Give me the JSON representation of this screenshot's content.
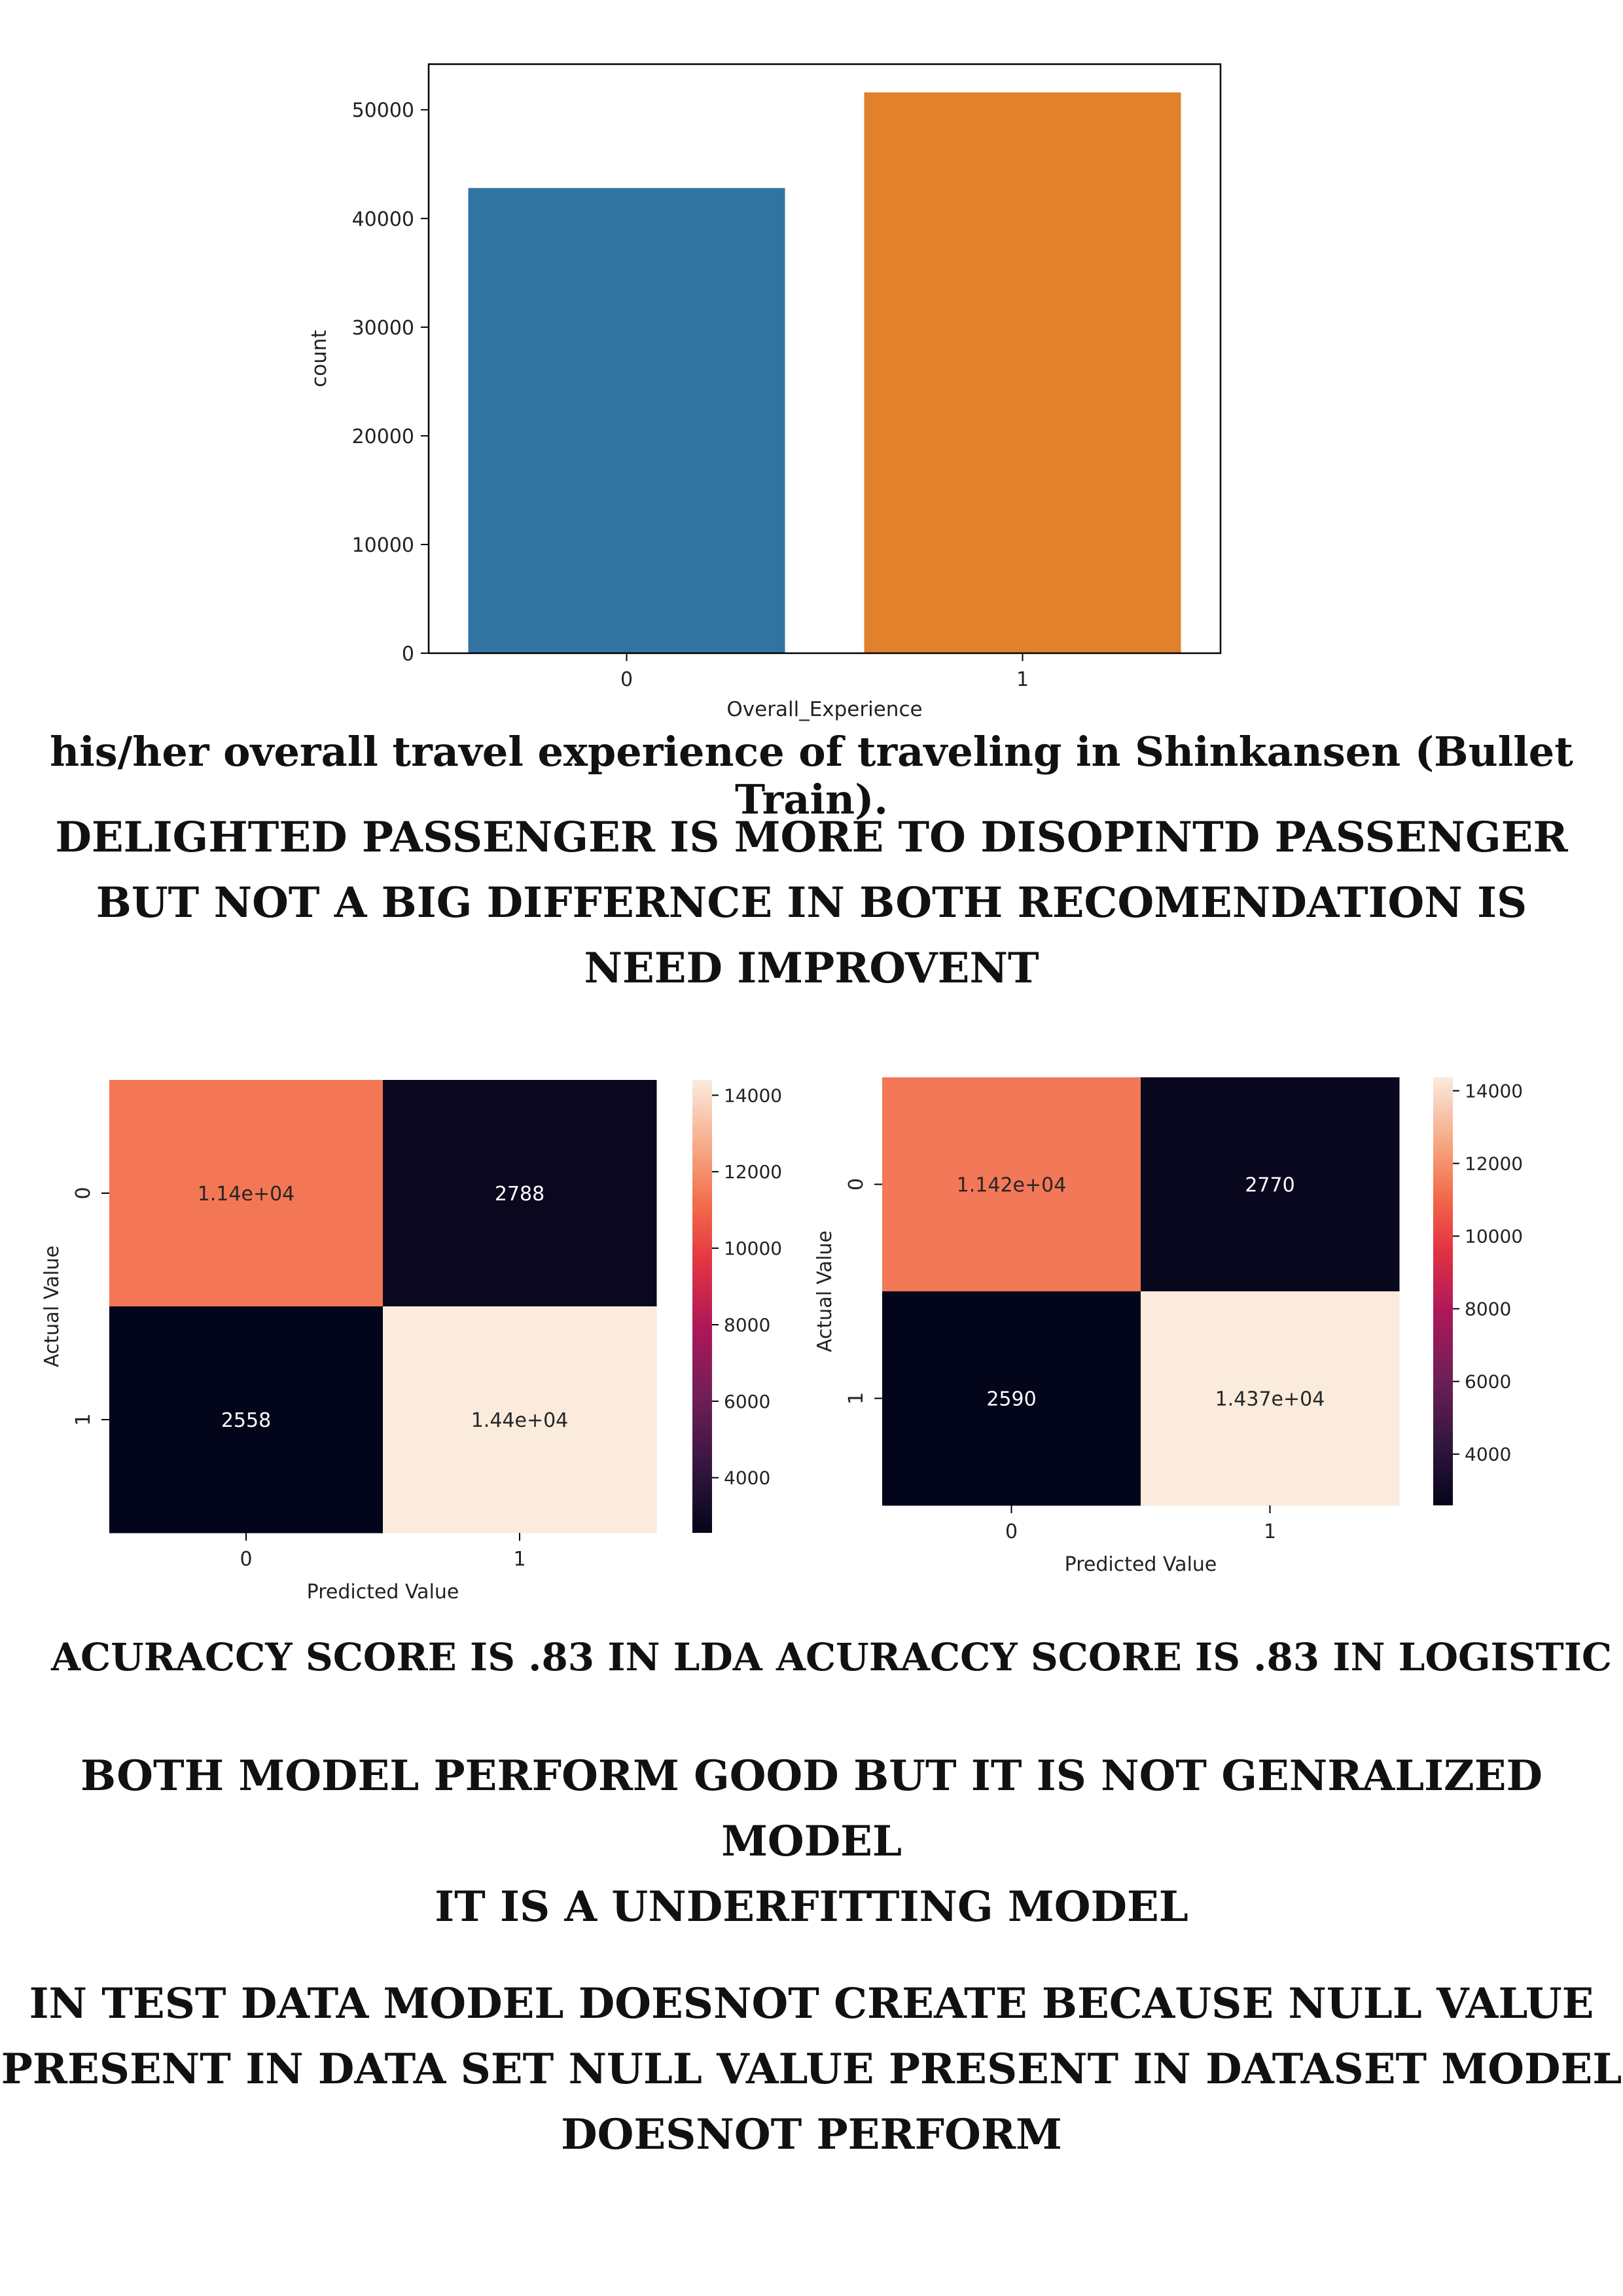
{
  "chart_data": [
    {
      "type": "bar",
      "categories": [
        "0",
        "1"
      ],
      "values": [
        42800,
        51600
      ],
      "colors": [
        "#3274a1",
        "#e1812c"
      ],
      "xlabel": "Overall_Experience",
      "ylabel": "count",
      "yticks": [
        0,
        10000,
        20000,
        30000,
        40000,
        50000
      ],
      "ylim": [
        0,
        54200
      ]
    },
    {
      "type": "heatmap",
      "rows": [
        "0",
        "1"
      ],
      "cols": [
        "0",
        "1"
      ],
      "values": [
        [
          11400,
          2788
        ],
        [
          2558,
          14400
        ]
      ],
      "labels": [
        [
          "1.14e+04",
          "2788"
        ],
        [
          "2558",
          "1.44e+04"
        ]
      ],
      "xlabel": "Predicted Value",
      "ylabel": "Actual Value",
      "colorbar_ticks": [
        4000,
        6000,
        8000,
        10000,
        12000,
        14000
      ],
      "colorbar_range": [
        2558,
        14400
      ]
    },
    {
      "type": "heatmap",
      "rows": [
        "0",
        "1"
      ],
      "cols": [
        "0",
        "1"
      ],
      "values": [
        [
          11420,
          2770
        ],
        [
          2590,
          14370
        ]
      ],
      "labels": [
        [
          "1.142e+04",
          "2770"
        ],
        [
          "2590",
          "1.437e+04"
        ]
      ],
      "xlabel": "Predicted Value",
      "ylabel": "Actual Value",
      "colorbar_ticks": [
        4000,
        6000,
        8000,
        10000,
        12000,
        14000
      ],
      "colorbar_range": [
        2590,
        14370
      ]
    }
  ],
  "text": {
    "caption": "his/her overall travel experience of traveling in Shinkansen (Bullet Train).",
    "heading1": [
      "DELIGHTED PASSENGER IS MORE TO DISOPINTD PASSENGER",
      "BUT NOT A BIG DIFFERNCE IN BOTH RECOMENDATION IS",
      "NEED IMPROVENT"
    ],
    "acc_lda": "ACURACCY SCORE IS .83 IN LDA",
    "acc_logistic": "ACURACCY SCORE IS .83 IN LOGISTIC",
    "heading2": [
      "BOTH MODEL PERFORM GOOD BUT IT IS NOT GENRALIZED MODEL",
      "IT IS A UNDERFITTING MODEL"
    ],
    "heading3": [
      "IN TEST DATA MODEL DOESNOT CREATE BECAUSE NULL VALUE",
      "PRESENT IN DATA SET NULL VALUE PRESENT IN DATASET MODEL",
      "DOESNOT PERFORM"
    ]
  }
}
